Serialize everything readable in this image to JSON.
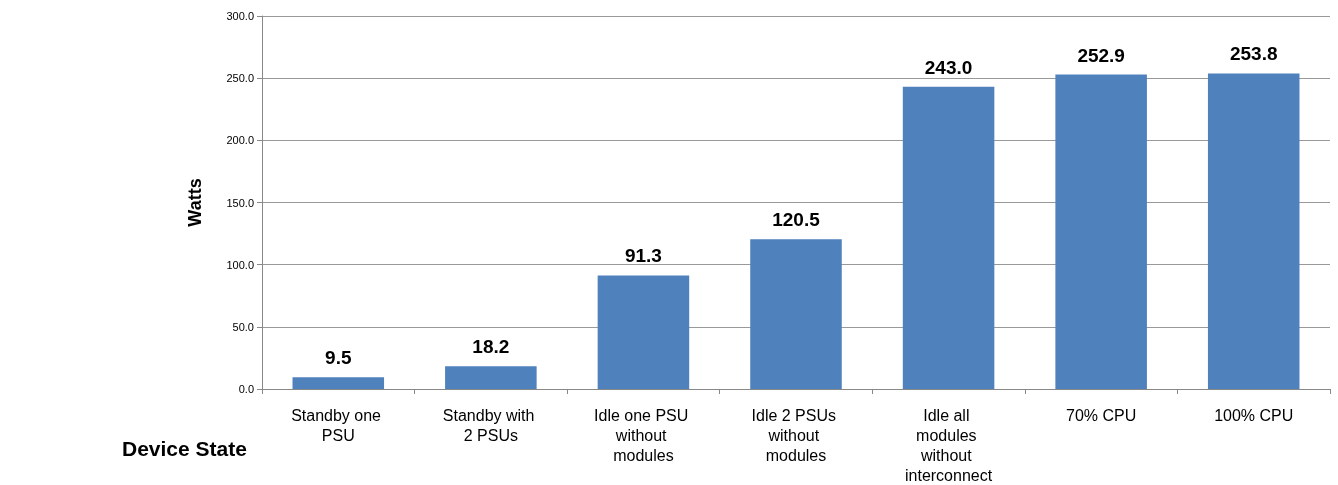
{
  "chart_data": {
    "type": "bar",
    "xlabel": "Device State",
    "ylabel": "Watts",
    "categories": [
      "Standby one PSU",
      "Standby with 2 PSUs",
      "Idle one PSU without modules",
      "Idle 2 PSUs without modules",
      "Idle all modules without interconnect",
      "70% CPU",
      "100% CPU"
    ],
    "values": [
      9.5,
      18.2,
      91.3,
      120.5,
      243.0,
      252.9,
      253.8
    ],
    "value_labels": [
      "9.5",
      "18.2",
      "91.3",
      "120.5",
      "243.0",
      "252.9",
      "253.8"
    ],
    "color": "#4f81bd",
    "ylim": [
      0,
      300
    ],
    "yticks": [
      {
        "value": 0,
        "label": "0.0"
      },
      {
        "value": 50,
        "label": "50.0"
      },
      {
        "value": 100,
        "label": "100.0"
      },
      {
        "value": 150,
        "label": "150.0"
      },
      {
        "value": 200,
        "label": "200.0"
      },
      {
        "value": 250,
        "label": "250.0"
      },
      {
        "value": 300,
        "label": "300.0"
      }
    ],
    "grid": "y"
  }
}
